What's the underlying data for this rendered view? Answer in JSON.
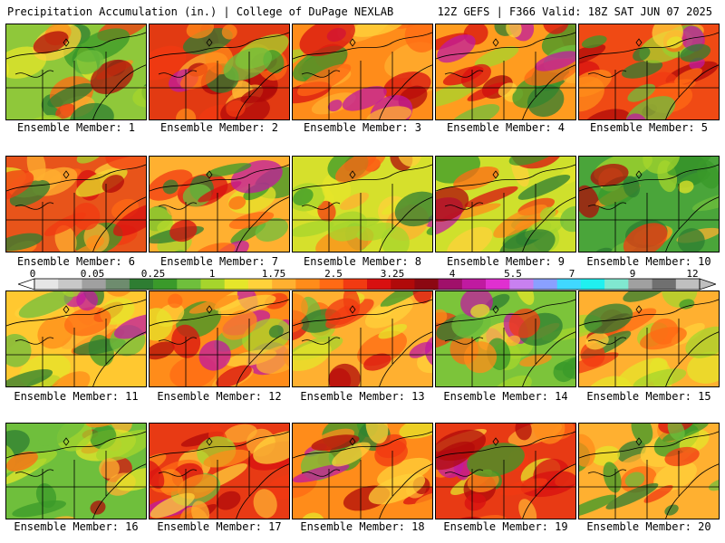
{
  "header": {
    "left": "Precipitation Accumulation (in.) | College of DuPage NEXLAB",
    "right": "12Z GEFS | F366 Valid: 18Z SAT JUN 07 2025"
  },
  "colorbar": {
    "labels": [
      "0",
      "0.05",
      "0.25",
      "1",
      "1.75",
      "2.5",
      "3.25",
      "4",
      "5.5",
      "7",
      "9",
      "12"
    ],
    "colors": [
      "#e6e6e6",
      "#c8c8c8",
      "#a0a0a0",
      "#6e8c6e",
      "#2e7d32",
      "#3a9a2a",
      "#6fbf3c",
      "#a6d52c",
      "#e6e62a",
      "#ffd23a",
      "#ffb030",
      "#ff8c1a",
      "#ff6a14",
      "#f23a12",
      "#d81010",
      "#b00a0a",
      "#8c0812",
      "#a0106a",
      "#c01aa0",
      "#e030d0",
      "#c880f0",
      "#8aa0ff",
      "#40d8ff",
      "#20f0f0",
      "#80e8d0",
      "#a0a0a0",
      "#707070",
      "#bfbfbf"
    ]
  },
  "panels": [
    {
      "label": "Ensemble Member: 1",
      "base": "#8fc83a",
      "intensity": 0.35
    },
    {
      "label": "Ensemble Member: 2",
      "base": "#e23a12",
      "intensity": 0.85
    },
    {
      "label": "Ensemble Member: 3",
      "base": "#ff8c1a",
      "intensity": 0.65
    },
    {
      "label": "Ensemble Member: 4",
      "base": "#ff9c1f",
      "intensity": 0.6
    },
    {
      "label": "Ensemble Member: 5",
      "base": "#f04a14",
      "intensity": 0.8
    },
    {
      "label": "Ensemble Member: 6",
      "base": "#e8541a",
      "intensity": 0.75
    },
    {
      "label": "Ensemble Member: 7",
      "base": "#ffb030",
      "intensity": 0.55
    },
    {
      "label": "Ensemble Member: 8",
      "base": "#d6e02c",
      "intensity": 0.4
    },
    {
      "label": "Ensemble Member: 9",
      "base": "#cfe02c",
      "intensity": 0.4
    },
    {
      "label": "Ensemble Member: 10",
      "base": "#4aa53a",
      "intensity": 0.3
    },
    {
      "label": "Ensemble Member: 11",
      "base": "#ffc830",
      "intensity": 0.55
    },
    {
      "label": "Ensemble Member: 12",
      "base": "#ff8c1a",
      "intensity": 0.75
    },
    {
      "label": "Ensemble Member: 13",
      "base": "#ffb030",
      "intensity": 0.55
    },
    {
      "label": "Ensemble Member: 14",
      "base": "#7cc43a",
      "intensity": 0.35
    },
    {
      "label": "Ensemble Member: 15",
      "base": "#ffb030",
      "intensity": 0.5
    },
    {
      "label": "Ensemble Member: 16",
      "base": "#6fbf3c",
      "intensity": 0.3
    },
    {
      "label": "Ensemble Member: 17",
      "base": "#e83a14",
      "intensity": 0.85
    },
    {
      "label": "Ensemble Member: 18",
      "base": "#ff8c1a",
      "intensity": 0.7
    },
    {
      "label": "Ensemble Member: 19",
      "base": "#e83a14",
      "intensity": 0.8
    },
    {
      "label": "Ensemble Member: 20",
      "base": "#ffb030",
      "intensity": 0.5
    }
  ]
}
